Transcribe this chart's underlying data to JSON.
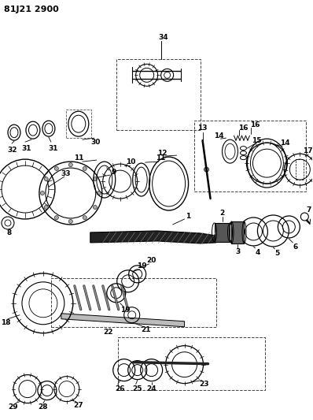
{
  "title": "81J21 2900",
  "bg_color": "#ffffff",
  "line_color": "#000000",
  "fig_width": 3.98,
  "fig_height": 5.33,
  "dpi": 100
}
